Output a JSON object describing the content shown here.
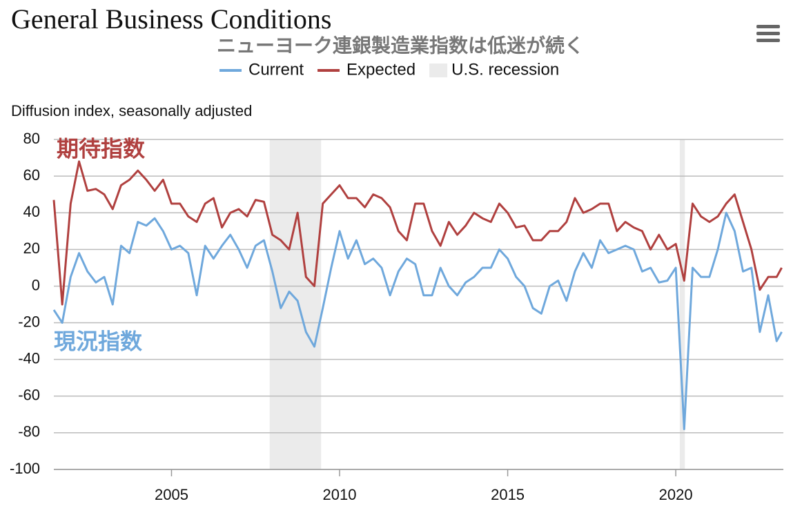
{
  "chart_data": {
    "type": "line",
    "title": "General Business Conditions",
    "subtitle": "ニューヨーク連銀製造業指数は低迷が続く",
    "y_axis_label": "Diffusion index, seasonally adjusted",
    "annotations": [
      {
        "text": "期待指数",
        "color": "#b0403f"
      },
      {
        "text": "現況指数",
        "color": "#6fa8dc"
      }
    ],
    "recession_label": "U.S. recession",
    "recession_color": "#ebebeb",
    "recessions": [
      [
        2007.92,
        2009.45
      ],
      [
        2020.12,
        2020.27
      ]
    ],
    "x": [
      2001.5,
      2001.75,
      2002,
      2002.25,
      2002.5,
      2002.75,
      2003,
      2003.25,
      2003.5,
      2003.75,
      2004,
      2004.25,
      2004.5,
      2004.75,
      2005,
      2005.25,
      2005.5,
      2005.75,
      2006,
      2006.25,
      2006.5,
      2006.75,
      2007,
      2007.25,
      2007.5,
      2007.75,
      2008,
      2008.25,
      2008.5,
      2008.75,
      2009,
      2009.25,
      2009.5,
      2009.75,
      2010,
      2010.25,
      2010.5,
      2010.75,
      2011,
      2011.25,
      2011.5,
      2011.75,
      2012,
      2012.25,
      2012.5,
      2012.75,
      2013,
      2013.25,
      2013.5,
      2013.75,
      2014,
      2014.25,
      2014.5,
      2014.75,
      2015,
      2015.25,
      2015.5,
      2015.75,
      2016,
      2016.25,
      2016.5,
      2016.75,
      2017,
      2017.25,
      2017.5,
      2017.75,
      2018,
      2018.25,
      2018.5,
      2018.75,
      2019,
      2019.25,
      2019.5,
      2019.75,
      2020,
      2020.25,
      2020.5,
      2020.75,
      2021,
      2021.25,
      2021.5,
      2021.75,
      2022,
      2022.25,
      2022.5,
      2022.75,
      2023,
      2023.15
    ],
    "series": [
      {
        "name": "Current",
        "color": "#6fa8dc",
        "values": [
          -13,
          -20,
          5,
          18,
          8,
          2,
          5,
          -10,
          22,
          18,
          35,
          33,
          37,
          30,
          20,
          22,
          18,
          -5,
          22,
          15,
          22,
          28,
          20,
          10,
          22,
          25,
          8,
          -12,
          -3,
          -8,
          -25,
          -33,
          -12,
          10,
          30,
          15,
          25,
          12,
          15,
          10,
          -5,
          8,
          15,
          12,
          -5,
          -5,
          10,
          0,
          -5,
          2,
          5,
          10,
          10,
          20,
          15,
          5,
          0,
          -12,
          -15,
          0,
          3,
          -8,
          8,
          18,
          10,
          25,
          18,
          20,
          22,
          20,
          8,
          10,
          2,
          3,
          10,
          -78,
          10,
          5,
          5,
          20,
          40,
          30,
          8,
          10,
          -25,
          -5,
          -30,
          -25
        ]
      },
      {
        "name": "Expected",
        "color": "#b0403f",
        "values": [
          47,
          -10,
          45,
          68,
          52,
          53,
          50,
          42,
          55,
          58,
          63,
          58,
          52,
          58,
          45,
          45,
          38,
          35,
          45,
          48,
          32,
          40,
          42,
          38,
          47,
          46,
          28,
          25,
          20,
          40,
          5,
          0,
          45,
          50,
          55,
          48,
          48,
          43,
          50,
          48,
          43,
          30,
          25,
          45,
          45,
          30,
          22,
          35,
          28,
          33,
          40,
          37,
          35,
          45,
          40,
          32,
          33,
          25,
          25,
          30,
          30,
          35,
          48,
          40,
          42,
          45,
          45,
          30,
          35,
          32,
          30,
          20,
          28,
          20,
          23,
          3,
          45,
          38,
          35,
          38,
          45,
          50,
          35,
          20,
          -2,
          5,
          5,
          10
        ]
      }
    ],
    "xlim": [
      2001.5,
      2023.2
    ],
    "xticks": [
      2005,
      2010,
      2015,
      2020
    ],
    "ylim": [
      -100,
      80
    ],
    "yticks": [
      -100,
      -80,
      -60,
      -40,
      -20,
      0,
      20,
      40,
      60,
      80
    ],
    "grid": true
  }
}
